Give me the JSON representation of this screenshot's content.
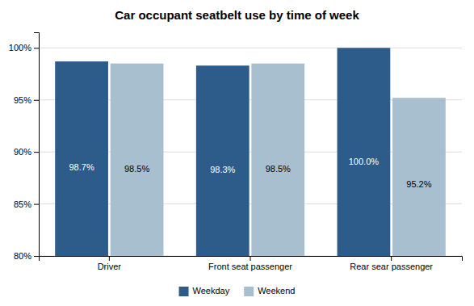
{
  "chart_data": {
    "type": "bar",
    "title": "Car occupant seatbelt use by time of week",
    "categories": [
      "Driver",
      "Front seat passenger",
      "Rear sear passenger"
    ],
    "series": [
      {
        "name": "Weekday",
        "color": "#2E5C8A",
        "values": [
          98.7,
          98.3,
          100.0
        ],
        "value_labels": [
          "98.7%",
          "98.3%",
          "100.0%"
        ]
      },
      {
        "name": "Weekend",
        "color": "#A8BFCF",
        "values": [
          98.5,
          98.5,
          95.2
        ],
        "value_labels": [
          "98.5%",
          "98.5%",
          "95.2%"
        ]
      }
    ],
    "ylim": [
      80,
      101.5
    ],
    "yticks": [
      {
        "value": 80,
        "label": "80%"
      },
      {
        "value": 85,
        "label": "85%"
      },
      {
        "value": 90,
        "label": "90%"
      },
      {
        "value": 95,
        "label": "95%"
      },
      {
        "value": 100,
        "label": "100%"
      }
    ],
    "grid": true,
    "legend": "bottom",
    "data_labels": true
  }
}
